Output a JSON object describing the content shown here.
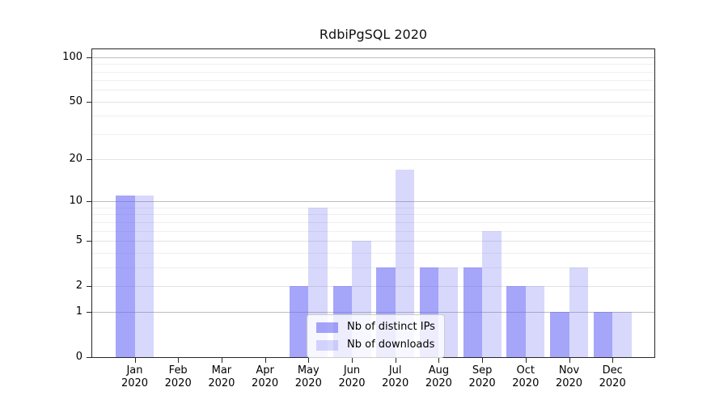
{
  "chart_data": {
    "type": "bar",
    "title": "RdbiPgSQL 2020",
    "categories": [
      "Jan 2020",
      "Feb 2020",
      "Mar 2020",
      "Apr 2020",
      "May 2020",
      "Jun 2020",
      "Jul 2020",
      "Aug 2020",
      "Sep 2020",
      "Oct 2020",
      "Nov 2020",
      "Dec 2020"
    ],
    "series": [
      {
        "name": "Nb of distinct IPs",
        "color": "rgba(100,100,245,0.58)",
        "values": [
          11,
          0,
          0,
          0,
          2,
          2,
          3,
          3,
          3,
          2,
          1,
          1
        ]
      },
      {
        "name": "Nb of downloads",
        "color": "rgba(100,100,245,0.25)",
        "values": [
          11,
          0,
          0,
          0,
          9,
          5,
          17,
          3,
          6,
          2,
          3,
          1
        ]
      }
    ],
    "xlabel": "",
    "ylabel": "",
    "yscale": "log1p",
    "ylim": [
      0,
      113
    ],
    "ytick_values": [
      0,
      1,
      2,
      5,
      10,
      20,
      50,
      100
    ],
    "ytick_labels": [
      "0",
      "1",
      "2",
      "5",
      "10",
      "20",
      "50",
      "100"
    ],
    "gridlines": {
      "decade": [
        1,
        10,
        100
      ],
      "labeled": [
        2,
        5,
        20,
        50
      ],
      "minor": [
        3,
        4,
        6,
        7,
        8,
        9,
        30,
        40,
        60,
        70,
        80,
        90
      ]
    },
    "grid": "on",
    "legend_position": "lower center",
    "colors": {
      "spine": "#262626",
      "grid_decade": "#bdbdbd",
      "grid_light": "#e3e3e3",
      "grid_minor": "#efefef"
    }
  }
}
